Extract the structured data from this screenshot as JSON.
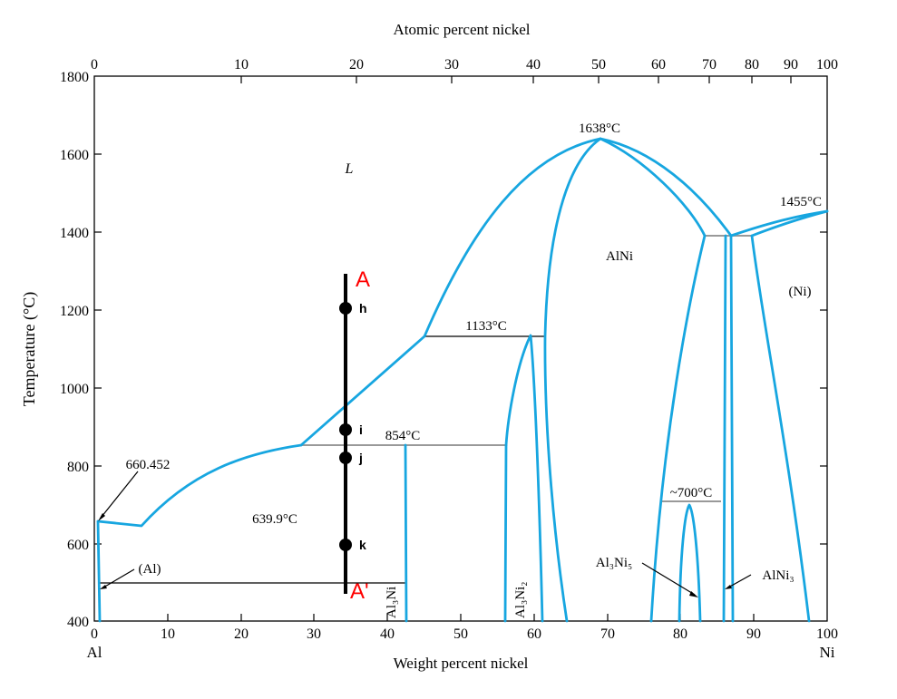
{
  "axes": {
    "top_title": "Atomic percent nickel",
    "bottom_title": "Weight percent nickel",
    "left_title": "Temperature (°C)",
    "bottom_left_element": "Al",
    "bottom_right_element": "Ni",
    "y_ticks": [
      "400",
      "600",
      "800",
      "1000",
      "1200",
      "1400",
      "1600",
      "1800"
    ],
    "x_ticks": [
      "0",
      "10",
      "20",
      "30",
      "40",
      "50",
      "60",
      "70",
      "80",
      "90",
      "100"
    ],
    "top_ticks": [
      "0",
      "10",
      "20",
      "30",
      "40",
      "50",
      "60",
      "70",
      "80",
      "90",
      "100"
    ]
  },
  "labels": {
    "liquid": "L",
    "alni": "AlNi",
    "ni": "(Ni)",
    "al": "(Al)",
    "al3ni": "Al₃Ni",
    "al3ni2": "Al₃Ni₂",
    "al3ni5": "Al₃Ni₅",
    "alni3": "AlNi₃"
  },
  "temperatures": {
    "t1638": "1638°C",
    "t1455": "1455°C",
    "t1133": "1133°C",
    "t854": "854°C",
    "t660": "660.452",
    "t639": "639.9°C",
    "t700": "~700°C"
  },
  "markers": {
    "top_label": "A",
    "bottom_label": "A'",
    "points": [
      "h",
      "i",
      "j",
      "k"
    ]
  },
  "colors": {
    "phase_line": "#17a6e0",
    "marker_label": "#ff0000"
  }
}
